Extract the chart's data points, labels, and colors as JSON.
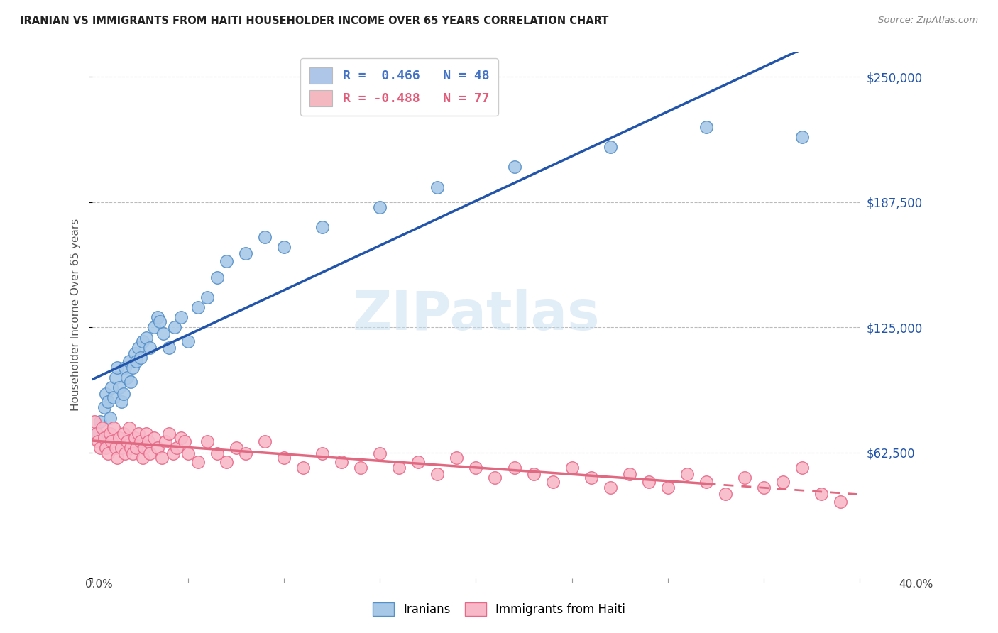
{
  "title": "IRANIAN VS IMMIGRANTS FROM HAITI HOUSEHOLDER INCOME OVER 65 YEARS CORRELATION CHART",
  "source": "Source: ZipAtlas.com",
  "ylabel": "Householder Income Over 65 years",
  "xmin": 0.0,
  "xmax": 0.4,
  "ymin": 0,
  "ymax": 262500,
  "yticks": [
    0,
    62500,
    125000,
    187500,
    250000
  ],
  "ytick_labels": [
    "",
    "$62,500",
    "$125,000",
    "$187,500",
    "$250,000"
  ],
  "legend_entries": [
    {
      "label": "R =  0.466   N = 48",
      "color": "#aec6e8",
      "text_color": "#4472c4"
    },
    {
      "label": "R = -0.488   N = 77",
      "color": "#f4b8c1",
      "text_color": "#e05c7a"
    }
  ],
  "iranians_color": "#a8c8e8",
  "iranians_edge": "#5590c8",
  "haiti_color": "#f8b8c8",
  "haiti_edge": "#e86888",
  "trend_iranian_color": "#2255aa",
  "trend_haiti_color": "#e06880",
  "background_color": "#ffffff",
  "grid_color": "#bbbbbb",
  "watermark": "ZIPatlas",
  "iranians_x": [
    0.002,
    0.004,
    0.005,
    0.006,
    0.007,
    0.008,
    0.009,
    0.01,
    0.011,
    0.012,
    0.013,
    0.014,
    0.015,
    0.016,
    0.017,
    0.018,
    0.019,
    0.02,
    0.021,
    0.022,
    0.023,
    0.024,
    0.025,
    0.026,
    0.028,
    0.03,
    0.032,
    0.034,
    0.035,
    0.037,
    0.04,
    0.043,
    0.046,
    0.05,
    0.055,
    0.06,
    0.065,
    0.07,
    0.08,
    0.09,
    0.1,
    0.12,
    0.15,
    0.18,
    0.22,
    0.27,
    0.32,
    0.37
  ],
  "iranians_y": [
    72000,
    78000,
    70000,
    85000,
    92000,
    88000,
    80000,
    95000,
    90000,
    100000,
    105000,
    95000,
    88000,
    92000,
    105000,
    100000,
    108000,
    98000,
    105000,
    112000,
    108000,
    115000,
    110000,
    118000,
    120000,
    115000,
    125000,
    130000,
    128000,
    122000,
    115000,
    125000,
    130000,
    118000,
    135000,
    140000,
    150000,
    158000,
    162000,
    170000,
    165000,
    175000,
    185000,
    195000,
    205000,
    215000,
    225000,
    220000
  ],
  "haiti_x": [
    0.001,
    0.002,
    0.003,
    0.004,
    0.005,
    0.006,
    0.007,
    0.008,
    0.009,
    0.01,
    0.011,
    0.012,
    0.013,
    0.014,
    0.015,
    0.016,
    0.017,
    0.018,
    0.019,
    0.02,
    0.021,
    0.022,
    0.023,
    0.024,
    0.025,
    0.026,
    0.027,
    0.028,
    0.029,
    0.03,
    0.032,
    0.034,
    0.036,
    0.038,
    0.04,
    0.042,
    0.044,
    0.046,
    0.048,
    0.05,
    0.055,
    0.06,
    0.065,
    0.07,
    0.075,
    0.08,
    0.09,
    0.1,
    0.11,
    0.12,
    0.13,
    0.14,
    0.15,
    0.16,
    0.17,
    0.18,
    0.19,
    0.2,
    0.21,
    0.22,
    0.23,
    0.24,
    0.25,
    0.26,
    0.27,
    0.28,
    0.29,
    0.3,
    0.31,
    0.32,
    0.33,
    0.34,
    0.35,
    0.36,
    0.37,
    0.38,
    0.39
  ],
  "haiti_y": [
    78000,
    72000,
    68000,
    65000,
    75000,
    70000,
    65000,
    62000,
    72000,
    68000,
    75000,
    65000,
    60000,
    70000,
    65000,
    72000,
    62000,
    68000,
    75000,
    65000,
    62000,
    70000,
    65000,
    72000,
    68000,
    60000,
    65000,
    72000,
    68000,
    62000,
    70000,
    65000,
    60000,
    68000,
    72000,
    62000,
    65000,
    70000,
    68000,
    62000,
    58000,
    68000,
    62000,
    58000,
    65000,
    62000,
    68000,
    60000,
    55000,
    62000,
    58000,
    55000,
    62000,
    55000,
    58000,
    52000,
    60000,
    55000,
    50000,
    55000,
    52000,
    48000,
    55000,
    50000,
    45000,
    52000,
    48000,
    45000,
    52000,
    48000,
    42000,
    50000,
    45000,
    48000,
    55000,
    42000,
    38000
  ]
}
